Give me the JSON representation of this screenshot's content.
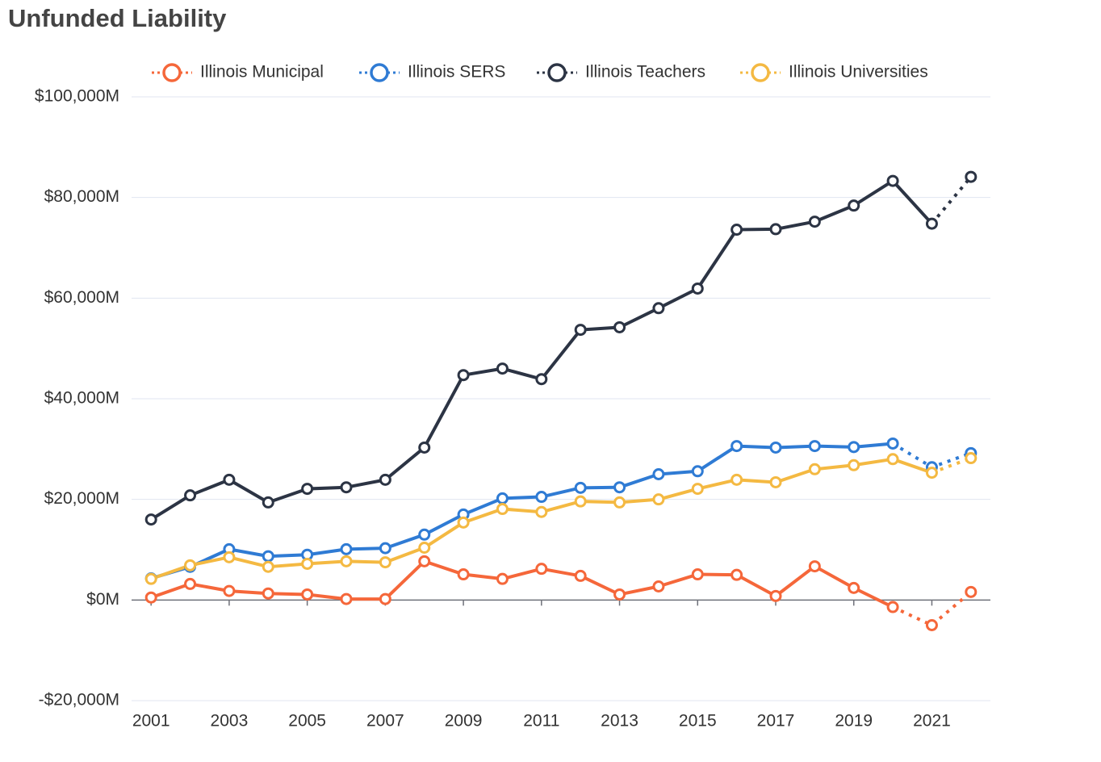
{
  "chart_data": {
    "type": "line",
    "title": "Unfunded Liability",
    "x": [
      2001,
      2002,
      2003,
      2004,
      2005,
      2006,
      2007,
      2008,
      2009,
      2010,
      2011,
      2012,
      2013,
      2014,
      2015,
      2016,
      2017,
      2018,
      2019,
      2020,
      2021,
      2022
    ],
    "series": [
      {
        "name": "Illinois Municipal",
        "color": "#f5673a",
        "dotted_from": 2020,
        "values": [
          500,
          3200,
          1800,
          1300,
          1100,
          200,
          200,
          7700,
          5100,
          4200,
          6200,
          4800,
          1100,
          2700,
          5100,
          5000,
          800,
          6700,
          2400,
          -1400,
          -5000,
          1600
        ]
      },
      {
        "name": "Illinois SERS",
        "color": "#2f7bd4",
        "dotted_from": 2020,
        "values": [
          4300,
          6600,
          10100,
          8700,
          9000,
          10100,
          10300,
          13000,
          17000,
          20200,
          20500,
          22300,
          22400,
          25000,
          25600,
          30600,
          30300,
          30600,
          30400,
          31100,
          26400,
          29200
        ]
      },
      {
        "name": "Illinois Teachers",
        "color": "#2c3444",
        "dotted_from": 2021,
        "values": [
          16000,
          20800,
          23900,
          19400,
          22100,
          22400,
          23900,
          30300,
          44700,
          46000,
          43900,
          53700,
          54200,
          58000,
          61900,
          73600,
          73700,
          75200,
          78400,
          83300,
          74800,
          84100
        ]
      },
      {
        "name": "Illinois Universities",
        "color": "#f4b942",
        "dotted_from": 2021,
        "values": [
          4200,
          6900,
          8500,
          6600,
          7200,
          7700,
          7500,
          10400,
          15400,
          18100,
          17500,
          19600,
          19400,
          20000,
          22100,
          23900,
          23400,
          26000,
          26800,
          28000,
          25300,
          28200
        ]
      }
    ],
    "xlim": [
      2000.5,
      2022.5
    ],
    "xticks": [
      2001,
      2003,
      2005,
      2007,
      2009,
      2011,
      2013,
      2015,
      2017,
      2019,
      2021
    ],
    "ylim": [
      -20000,
      100000
    ],
    "yticks": [
      {
        "value": -20000,
        "label": "-$20,000M"
      },
      {
        "value": 0,
        "label": "$0M"
      },
      {
        "value": 20000,
        "label": "$20,000M"
      },
      {
        "value": 40000,
        "label": "$40,000M"
      },
      {
        "value": 60000,
        "label": "$60,000M"
      },
      {
        "value": 80000,
        "label": "$80,000M"
      },
      {
        "value": 100000,
        "label": "$100,000M"
      }
    ],
    "grid": true,
    "legend": "top"
  }
}
